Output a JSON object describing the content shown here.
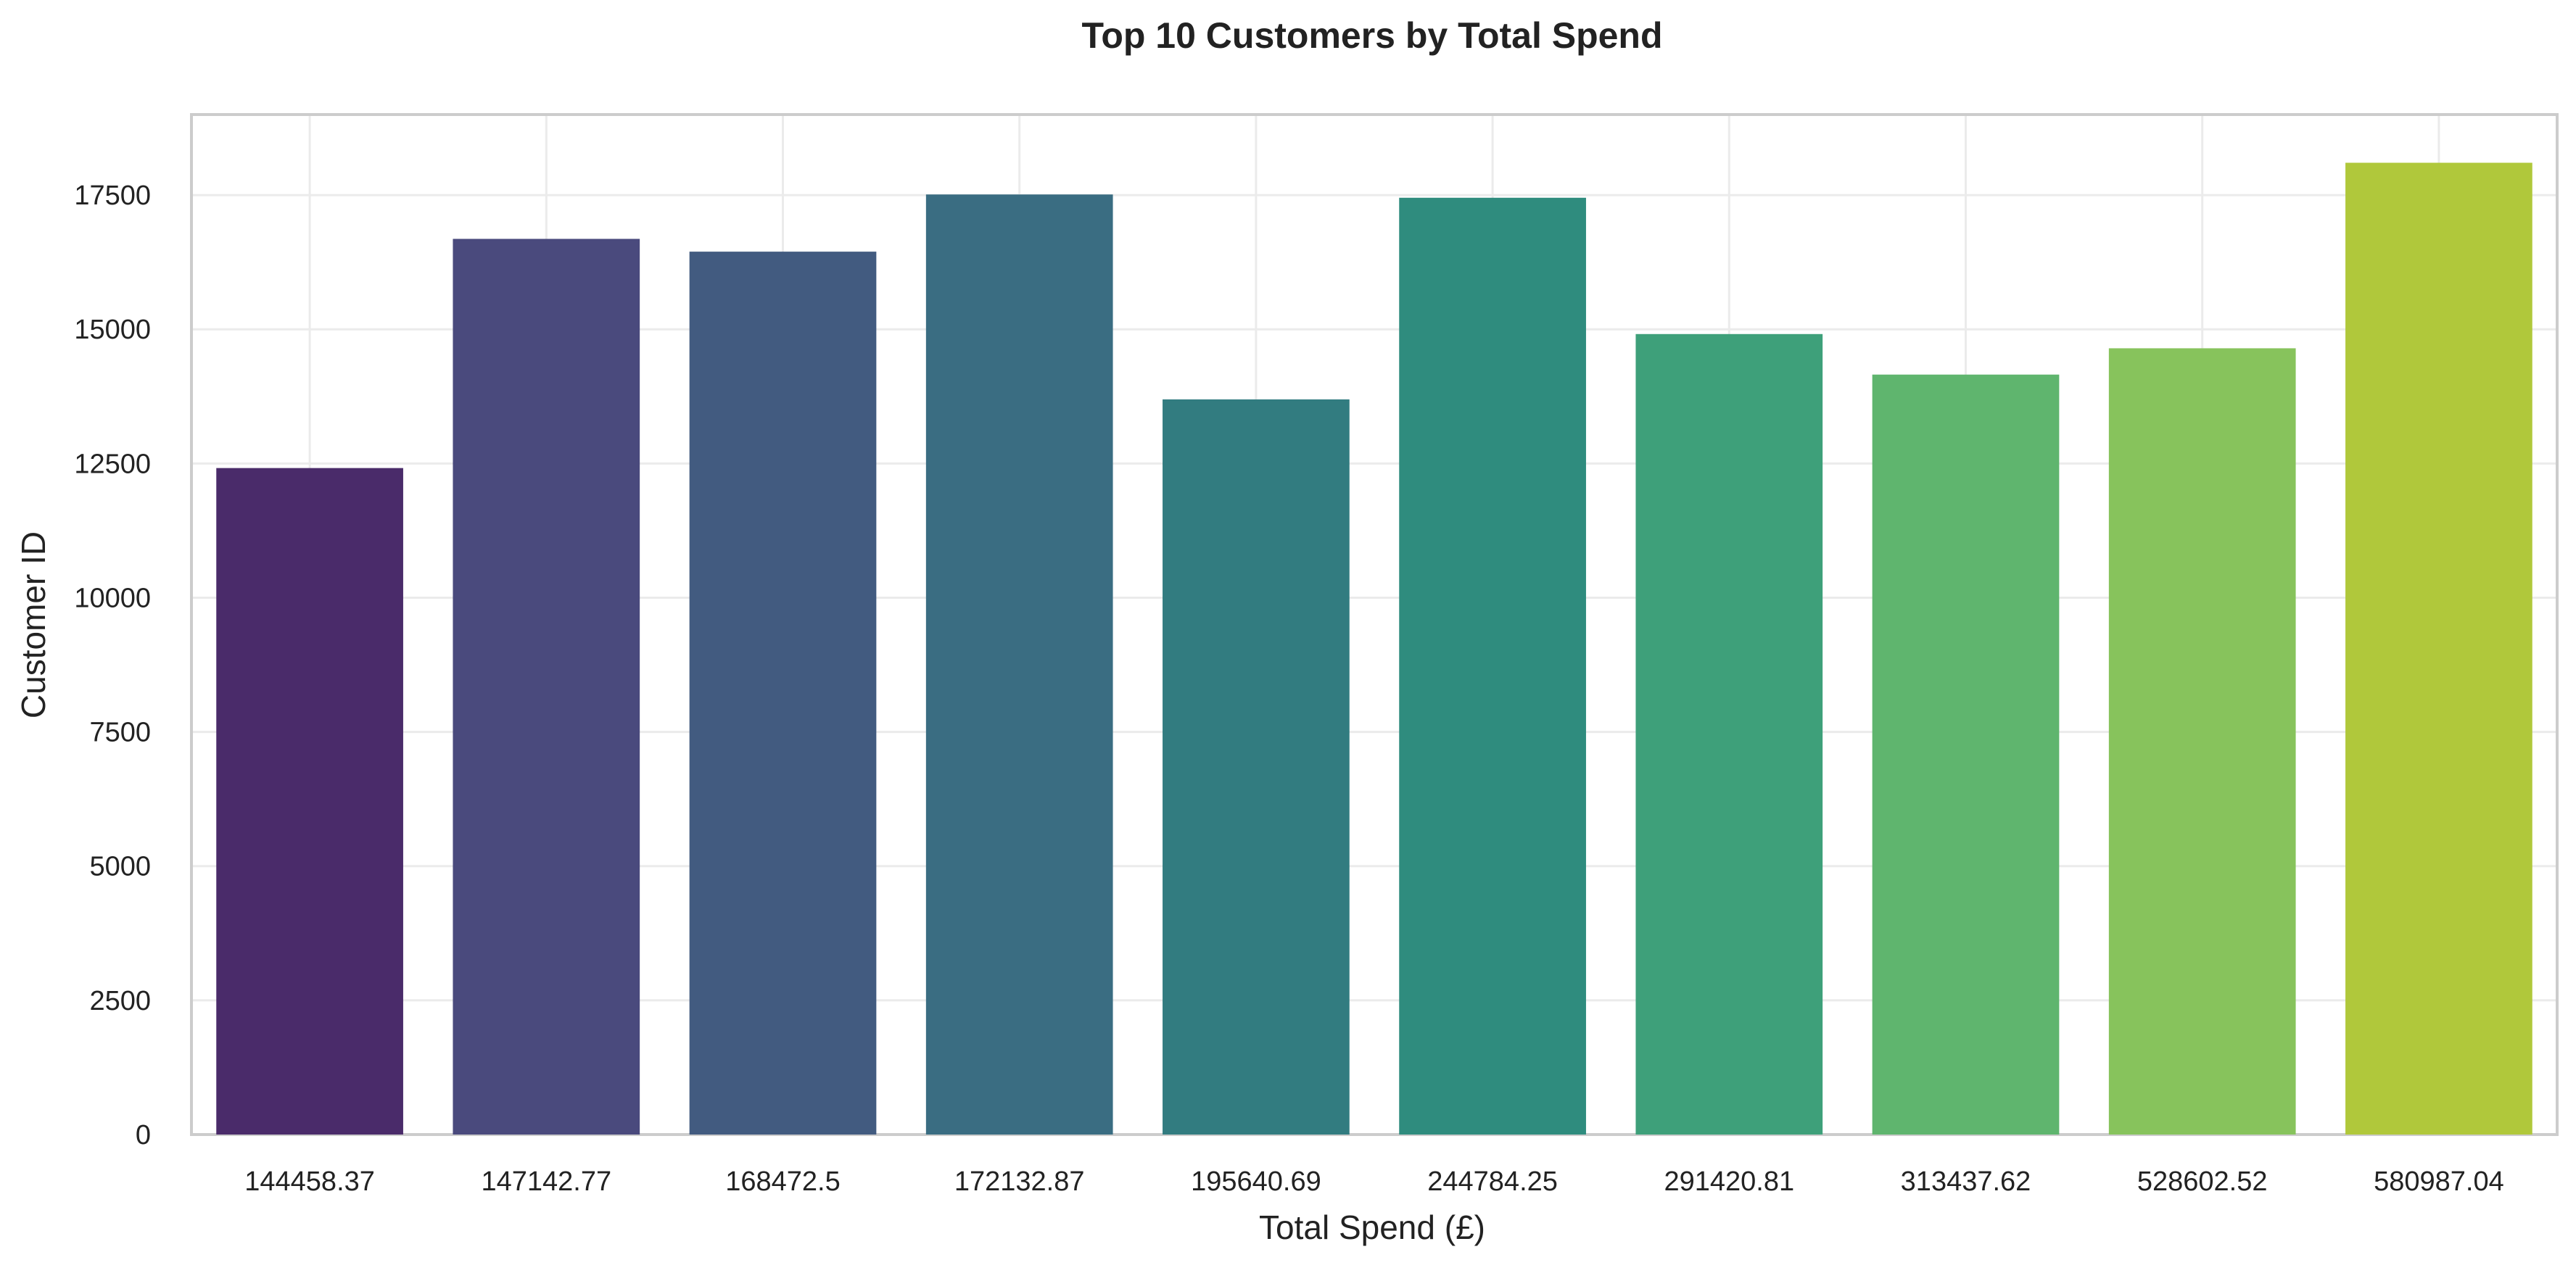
{
  "chart_data": {
    "type": "bar",
    "title": "Top 10 Customers by Total Spend",
    "xlabel": "Total Spend (£)",
    "ylabel": "Customer ID",
    "categories": [
      "144458.37",
      "147142.77",
      "168472.5",
      "172132.87",
      "195640.69",
      "244784.25",
      "291420.81",
      "313437.62",
      "528602.52",
      "580987.04"
    ],
    "values": [
      12415,
      16684,
      16446,
      17511,
      13694,
      17450,
      14911,
      14156,
      14646,
      18102
    ],
    "colors": [
      "#4a2b6a",
      "#4a4a7d",
      "#425b80",
      "#3a6d82",
      "#327c80",
      "#2f8c7e",
      "#3ea07a",
      "#5fb56e",
      "#87c35c",
      "#b0c83b"
    ],
    "ylim": [
      0,
      19000
    ],
    "yticks": [
      0,
      2500,
      5000,
      7500,
      10000,
      12500,
      15000,
      17500
    ],
    "grid": true,
    "legend": "none"
  }
}
